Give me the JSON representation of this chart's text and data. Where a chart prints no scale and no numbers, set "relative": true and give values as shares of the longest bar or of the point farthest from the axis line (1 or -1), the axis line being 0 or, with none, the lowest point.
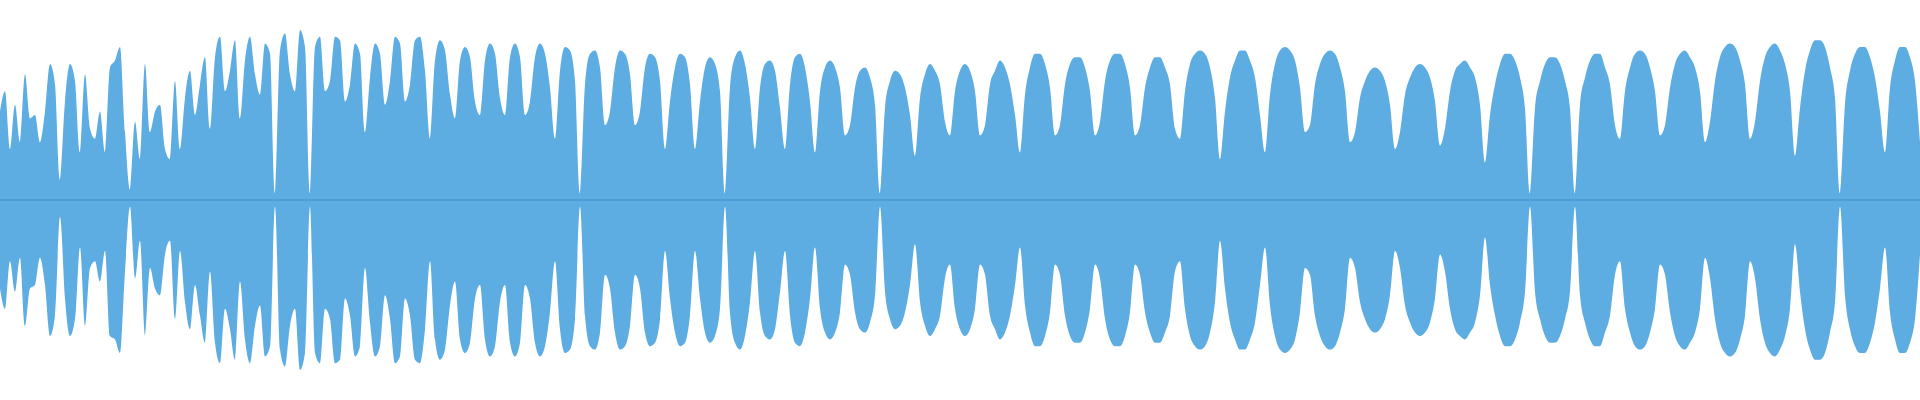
{
  "chart_data": {
    "type": "area",
    "relative": true,
    "ref_lines": [
      {
        "axis": "y",
        "value": 0,
        "color": "#3f8fc9"
      }
    ],
    "categories": [
      null,
      null,
      null,
      null,
      null,
      null,
      null,
      null,
      null,
      null,
      null,
      null,
      null,
      null,
      null,
      null,
      null,
      null,
      null,
      null,
      null,
      null,
      null,
      null,
      null,
      null,
      null,
      null,
      null,
      null,
      null,
      null,
      null,
      null,
      null,
      null,
      null,
      null,
      null,
      null,
      null,
      null,
      null,
      null,
      null,
      null,
      null,
      null,
      null,
      null,
      null,
      null,
      null,
      null,
      null,
      null,
      null,
      null,
      null,
      null,
      null,
      null,
      null,
      null,
      null,
      null,
      null,
      null,
      null,
      null,
      null,
      null,
      null,
      null,
      null,
      null,
      null,
      null,
      null,
      null,
      null,
      null,
      null,
      null,
      null,
      null,
      null,
      null,
      null,
      null,
      null,
      null,
      null,
      null,
      null,
      null,
      null,
      null,
      null,
      null,
      null,
      null,
      null,
      null,
      null,
      null,
      null,
      null,
      null,
      null,
      null,
      null,
      null,
      null,
      null,
      null,
      null,
      null,
      null,
      null,
      null,
      null,
      null,
      null,
      null,
      null,
      null,
      null,
      null,
      null,
      null,
      null,
      null,
      null,
      null,
      null,
      null,
      null,
      null,
      null,
      null,
      null,
      null,
      null,
      null,
      null,
      null,
      null,
      null,
      null,
      null,
      null,
      null,
      null,
      null,
      null,
      null,
      null,
      null,
      null,
      null,
      null,
      null,
      null,
      null,
      null,
      null,
      null,
      null,
      null,
      null,
      null,
      null,
      null,
      null,
      null,
      null,
      null,
      null,
      null,
      null,
      null,
      null,
      null,
      null,
      null,
      null,
      null,
      null,
      null,
      null,
      null,
      null,
      null,
      null,
      null,
      null,
      null,
      null,
      null,
      null,
      null,
      null,
      null,
      null,
      null,
      null,
      null,
      null,
      null,
      null,
      null,
      null,
      null,
      null,
      null,
      null,
      null,
      null,
      null,
      null,
      null,
      null,
      null,
      null,
      null,
      null,
      null,
      null,
      null,
      null,
      null,
      null,
      null,
      null,
      null,
      null,
      null,
      null,
      null,
      null,
      null,
      null,
      null,
      null,
      null,
      null,
      null,
      null,
      null,
      null,
      null,
      null,
      null,
      null,
      null,
      null,
      null,
      null,
      null,
      null,
      null,
      null,
      null,
      null,
      null,
      null,
      null,
      null,
      null,
      null,
      null,
      null,
      null,
      null,
      null,
      null,
      null,
      null,
      null,
      null,
      null,
      null,
      null,
      null,
      null,
      null,
      null,
      null,
      null,
      null,
      null,
      null,
      null,
      null,
      null,
      null,
      null,
      null,
      null,
      null,
      null,
      null,
      null,
      null,
      null,
      null,
      null,
      null,
      null,
      null,
      null,
      null,
      null,
      null,
      null,
      null,
      null,
      null,
      null,
      null,
      null,
      null,
      null,
      null,
      null,
      null,
      null,
      null,
      null,
      null,
      null,
      null,
      null,
      null,
      null,
      null,
      null,
      null,
      null,
      null,
      null,
      null,
      null,
      null,
      null,
      null,
      null,
      null,
      null,
      null,
      null,
      null,
      null,
      null,
      null,
      null,
      null,
      null,
      null,
      null,
      null,
      null,
      null,
      null,
      null,
      null,
      null,
      null,
      null,
      null,
      null,
      null,
      null,
      null,
      null,
      null,
      null,
      null,
      null,
      null,
      null,
      null,
      null,
      null
    ],
    "series": [
      {
        "color": "#5dade2",
        "values": [
          0.52,
          0.64,
          0.3,
          0.56,
          0.34,
          0.74,
          0.48,
          0.5,
          0.34,
          0.52,
          0.8,
          0.68,
          0.12,
          0.58,
          0.8,
          0.7,
          0.28,
          0.74,
          0.42,
          0.36,
          0.52,
          0.28,
          0.78,
          0.82,
          0.9,
          0.4,
          0.06,
          0.46,
          0.24,
          0.8,
          0.4,
          0.52,
          0.56,
          0.3,
          0.24,
          0.7,
          0.3,
          0.6,
          0.76,
          0.5,
          0.68,
          0.84,
          0.42,
          0.84,
          0.96,
          0.64,
          0.76,
          0.94,
          0.48,
          0.82,
          0.96,
          0.74,
          0.62,
          0.92,
          0.86,
          0.04,
          0.88,
          0.98,
          0.74,
          0.64,
          1.0,
          0.9,
          0.04,
          0.9,
          0.96,
          0.64,
          0.7,
          0.96,
          0.94,
          0.58,
          0.68,
          0.92,
          0.86,
          0.4,
          0.72,
          0.92,
          0.86,
          0.56,
          0.7,
          0.96,
          0.92,
          0.58,
          0.68,
          0.94,
          0.96,
          0.76,
          0.36,
          0.82,
          0.94,
          0.88,
          0.62,
          0.48,
          0.82,
          0.9,
          0.84,
          0.58,
          0.5,
          0.82,
          0.92,
          0.86,
          0.6,
          0.5,
          0.84,
          0.92,
          0.84,
          0.5,
          0.58,
          0.84,
          0.92,
          0.86,
          0.66,
          0.36,
          0.76,
          0.9,
          0.88,
          0.7,
          0.04,
          0.68,
          0.86,
          0.88,
          0.78,
          0.44,
          0.52,
          0.78,
          0.88,
          0.86,
          0.74,
          0.44,
          0.52,
          0.78,
          0.86,
          0.84,
          0.7,
          0.3,
          0.58,
          0.78,
          0.86,
          0.84,
          0.68,
          0.3,
          0.58,
          0.78,
          0.84,
          0.8,
          0.64,
          0.04,
          0.66,
          0.84,
          0.88,
          0.8,
          0.6,
          0.3,
          0.66,
          0.8,
          0.82,
          0.76,
          0.54,
          0.3,
          0.68,
          0.84,
          0.86,
          0.78,
          0.58,
          0.28,
          0.64,
          0.78,
          0.82,
          0.78,
          0.66,
          0.38,
          0.44,
          0.66,
          0.76,
          0.78,
          0.72,
          0.56,
          0.04,
          0.54,
          0.7,
          0.76,
          0.74,
          0.66,
          0.5,
          0.26,
          0.6,
          0.74,
          0.8,
          0.76,
          0.68,
          0.46,
          0.38,
          0.64,
          0.76,
          0.8,
          0.76,
          0.64,
          0.38,
          0.44,
          0.68,
          0.76,
          0.82,
          0.78,
          0.68,
          0.5,
          0.28,
          0.62,
          0.78,
          0.86,
          0.86,
          0.8,
          0.66,
          0.38,
          0.44,
          0.68,
          0.8,
          0.84,
          0.84,
          0.78,
          0.64,
          0.38,
          0.46,
          0.7,
          0.82,
          0.86,
          0.86,
          0.8,
          0.66,
          0.38,
          0.44,
          0.66,
          0.78,
          0.84,
          0.84,
          0.78,
          0.68,
          0.42,
          0.36,
          0.64,
          0.8,
          0.86,
          0.88,
          0.86,
          0.78,
          0.6,
          0.24,
          0.52,
          0.72,
          0.82,
          0.88,
          0.88,
          0.82,
          0.72,
          0.5,
          0.28,
          0.62,
          0.8,
          0.88,
          0.9,
          0.88,
          0.82,
          0.66,
          0.4,
          0.44,
          0.68,
          0.8,
          0.86,
          0.88,
          0.86,
          0.78,
          0.64,
          0.34,
          0.4,
          0.6,
          0.7,
          0.76,
          0.78,
          0.76,
          0.7,
          0.56,
          0.3,
          0.4,
          0.62,
          0.72,
          0.78,
          0.8,
          0.78,
          0.72,
          0.58,
          0.32,
          0.42,
          0.64,
          0.76,
          0.8,
          0.82,
          0.78,
          0.72,
          0.56,
          0.22,
          0.5,
          0.68,
          0.8,
          0.86,
          0.86,
          0.82,
          0.72,
          0.54,
          0.04,
          0.54,
          0.7,
          0.8,
          0.84,
          0.84,
          0.8,
          0.7,
          0.54,
          0.04,
          0.56,
          0.72,
          0.82,
          0.86,
          0.86,
          0.78,
          0.68,
          0.44,
          0.36,
          0.64,
          0.78,
          0.86,
          0.88,
          0.86,
          0.78,
          0.64,
          0.38,
          0.44,
          0.66,
          0.8,
          0.86,
          0.88,
          0.84,
          0.78,
          0.64,
          0.34,
          0.46,
          0.7,
          0.84,
          0.9,
          0.92,
          0.9,
          0.82,
          0.68,
          0.36,
          0.46,
          0.7,
          0.84,
          0.9,
          0.92,
          0.88,
          0.8,
          0.64,
          0.26,
          0.54,
          0.76,
          0.88,
          0.94,
          0.94,
          0.9,
          0.78,
          0.6,
          0.04,
          0.56,
          0.76,
          0.86,
          0.9,
          0.9,
          0.84,
          0.72,
          0.52,
          0.28,
          0.66,
          0.82,
          0.9,
          0.9,
          0.84,
          0.7,
          0.34
        ]
      },
      {
        "color": "#5dade2",
        "values": [
          -0.52,
          -0.64,
          -0.36,
          -0.54,
          -0.34,
          -0.74,
          -0.52,
          -0.5,
          -0.34,
          -0.5,
          -0.8,
          -0.68,
          -0.1,
          -0.58,
          -0.8,
          -0.7,
          -0.28,
          -0.74,
          -0.4,
          -0.36,
          -0.48,
          -0.3,
          -0.8,
          -0.82,
          -0.9,
          -0.42,
          -0.04,
          -0.46,
          -0.24,
          -0.8,
          -0.4,
          -0.52,
          -0.56,
          -0.32,
          -0.24,
          -0.7,
          -0.3,
          -0.6,
          -0.76,
          -0.5,
          -0.68,
          -0.84,
          -0.42,
          -0.84,
          -0.96,
          -0.64,
          -0.76,
          -0.94,
          -0.48,
          -0.82,
          -0.96,
          -0.74,
          -0.62,
          -0.92,
          -0.86,
          -0.04,
          -0.88,
          -0.98,
          -0.74,
          -0.64,
          -1.0,
          -0.9,
          -0.04,
          -0.9,
          -0.96,
          -0.64,
          -0.7,
          -0.96,
          -0.94,
          -0.58,
          -0.68,
          -0.92,
          -0.86,
          -0.4,
          -0.72,
          -0.92,
          -0.86,
          -0.56,
          -0.7,
          -0.96,
          -0.92,
          -0.58,
          -0.68,
          -0.94,
          -0.96,
          -0.76,
          -0.36,
          -0.82,
          -0.94,
          -0.88,
          -0.62,
          -0.48,
          -0.82,
          -0.9,
          -0.84,
          -0.58,
          -0.5,
          -0.82,
          -0.92,
          -0.86,
          -0.6,
          -0.5,
          -0.84,
          -0.92,
          -0.84,
          -0.5,
          -0.58,
          -0.84,
          -0.92,
          -0.86,
          -0.66,
          -0.36,
          -0.76,
          -0.9,
          -0.88,
          -0.7,
          -0.04,
          -0.68,
          -0.86,
          -0.88,
          -0.78,
          -0.44,
          -0.52,
          -0.78,
          -0.88,
          -0.86,
          -0.74,
          -0.44,
          -0.52,
          -0.78,
          -0.86,
          -0.84,
          -0.7,
          -0.3,
          -0.58,
          -0.78,
          -0.86,
          -0.84,
          -0.68,
          -0.3,
          -0.58,
          -0.78,
          -0.84,
          -0.8,
          -0.64,
          -0.04,
          -0.66,
          -0.84,
          -0.88,
          -0.8,
          -0.6,
          -0.3,
          -0.66,
          -0.8,
          -0.82,
          -0.76,
          -0.54,
          -0.3,
          -0.68,
          -0.84,
          -0.86,
          -0.78,
          -0.58,
          -0.28,
          -0.64,
          -0.78,
          -0.82,
          -0.78,
          -0.66,
          -0.38,
          -0.44,
          -0.66,
          -0.76,
          -0.78,
          -0.72,
          -0.56,
          -0.04,
          -0.54,
          -0.7,
          -0.76,
          -0.74,
          -0.66,
          -0.5,
          -0.26,
          -0.6,
          -0.74,
          -0.8,
          -0.76,
          -0.68,
          -0.46,
          -0.38,
          -0.64,
          -0.76,
          -0.8,
          -0.76,
          -0.64,
          -0.38,
          -0.44,
          -0.68,
          -0.76,
          -0.82,
          -0.78,
          -0.68,
          -0.5,
          -0.28,
          -0.62,
          -0.78,
          -0.86,
          -0.86,
          -0.8,
          -0.66,
          -0.38,
          -0.44,
          -0.68,
          -0.8,
          -0.84,
          -0.84,
          -0.78,
          -0.64,
          -0.38,
          -0.46,
          -0.7,
          -0.82,
          -0.86,
          -0.86,
          -0.8,
          -0.66,
          -0.38,
          -0.44,
          -0.66,
          -0.78,
          -0.84,
          -0.84,
          -0.78,
          -0.68,
          -0.42,
          -0.36,
          -0.64,
          -0.8,
          -0.86,
          -0.88,
          -0.86,
          -0.78,
          -0.6,
          -0.24,
          -0.52,
          -0.72,
          -0.82,
          -0.88,
          -0.88,
          -0.82,
          -0.72,
          -0.5,
          -0.28,
          -0.62,
          -0.8,
          -0.88,
          -0.9,
          -0.88,
          -0.82,
          -0.66,
          -0.4,
          -0.44,
          -0.68,
          -0.8,
          -0.86,
          -0.88,
          -0.86,
          -0.78,
          -0.64,
          -0.34,
          -0.4,
          -0.6,
          -0.7,
          -0.76,
          -0.78,
          -0.76,
          -0.7,
          -0.56,
          -0.3,
          -0.4,
          -0.62,
          -0.72,
          -0.78,
          -0.8,
          -0.78,
          -0.72,
          -0.58,
          -0.32,
          -0.42,
          -0.64,
          -0.76,
          -0.8,
          -0.82,
          -0.78,
          -0.72,
          -0.56,
          -0.22,
          -0.5,
          -0.68,
          -0.8,
          -0.86,
          -0.86,
          -0.82,
          -0.72,
          -0.54,
          -0.04,
          -0.54,
          -0.7,
          -0.8,
          -0.84,
          -0.84,
          -0.8,
          -0.7,
          -0.54,
          -0.04,
          -0.56,
          -0.72,
          -0.82,
          -0.86,
          -0.86,
          -0.78,
          -0.68,
          -0.44,
          -0.36,
          -0.64,
          -0.78,
          -0.86,
          -0.88,
          -0.86,
          -0.78,
          -0.64,
          -0.38,
          -0.44,
          -0.66,
          -0.8,
          -0.86,
          -0.88,
          -0.84,
          -0.78,
          -0.64,
          -0.34,
          -0.46,
          -0.7,
          -0.84,
          -0.9,
          -0.92,
          -0.9,
          -0.82,
          -0.68,
          -0.36,
          -0.46,
          -0.7,
          -0.84,
          -0.9,
          -0.92,
          -0.88,
          -0.8,
          -0.64,
          -0.26,
          -0.54,
          -0.76,
          -0.88,
          -0.94,
          -0.94,
          -0.9,
          -0.78,
          -0.6,
          -0.04,
          -0.56,
          -0.76,
          -0.86,
          -0.9,
          -0.9,
          -0.84,
          -0.72,
          -0.52,
          -0.28,
          -0.66,
          -0.82,
          -0.9,
          -0.9,
          -0.84,
          -0.7,
          -0.32
        ]
      }
    ]
  }
}
